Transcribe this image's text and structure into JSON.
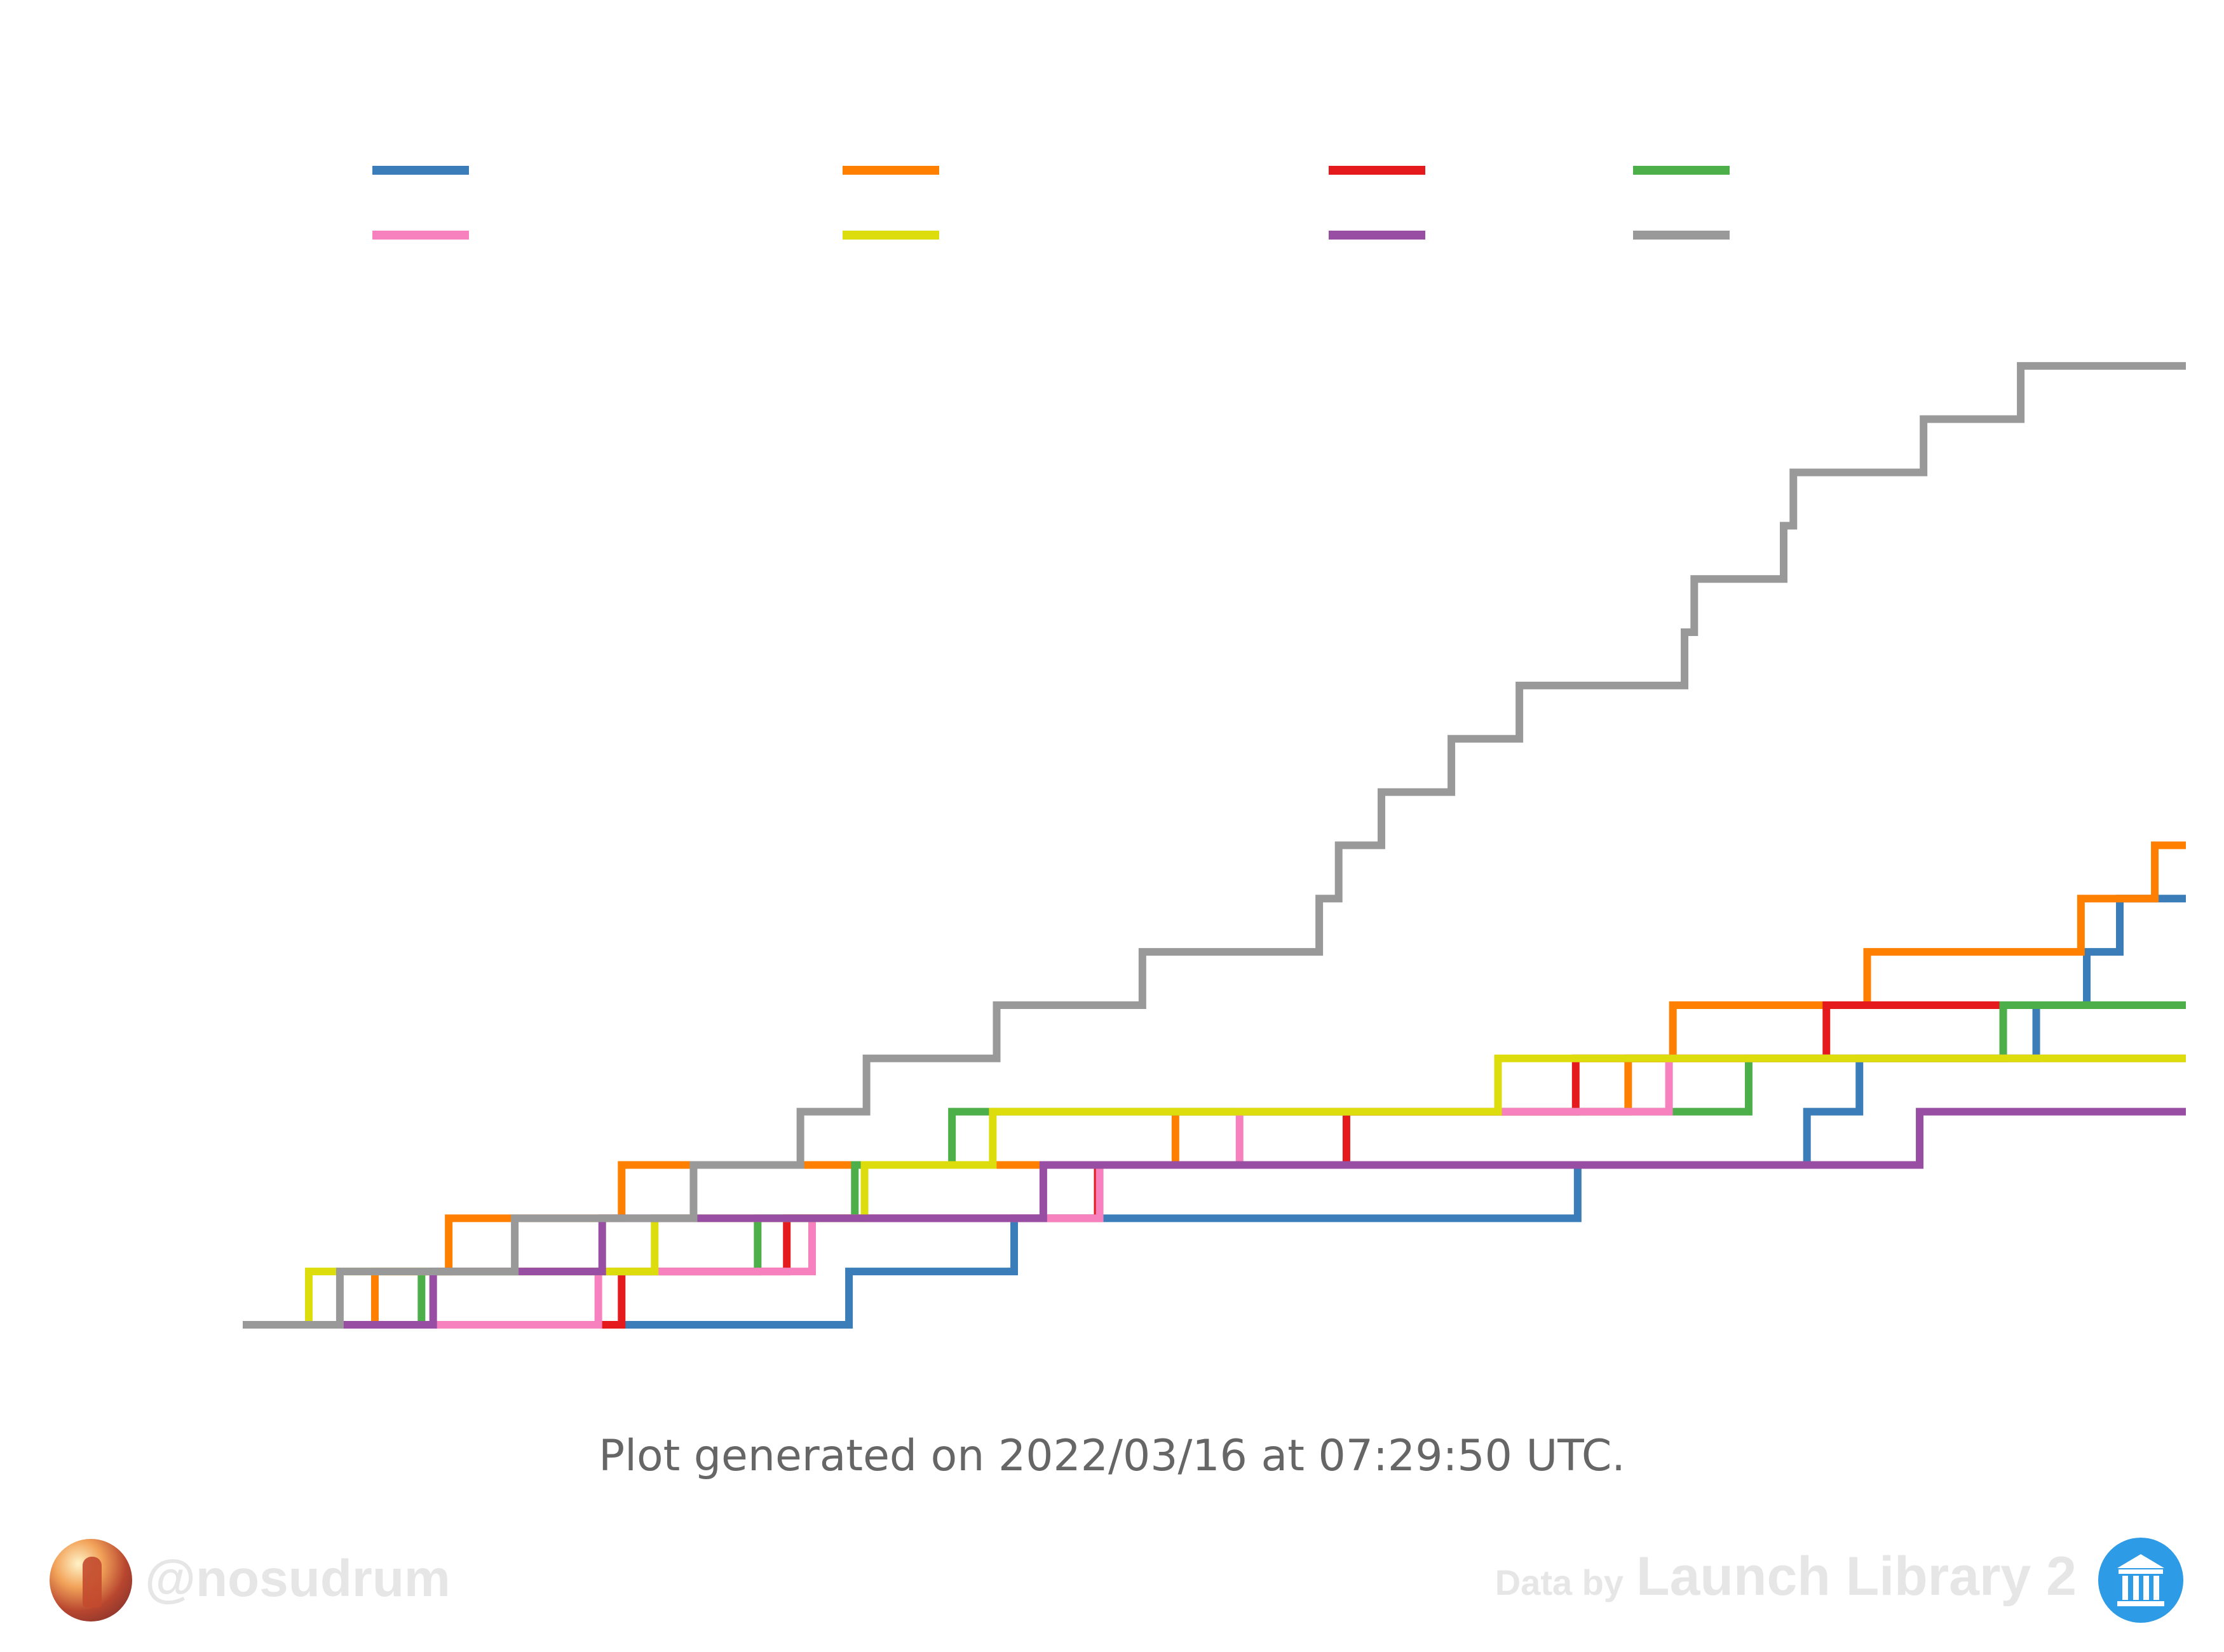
{
  "chart_data": {
    "type": "line",
    "step": true,
    "title": "",
    "xlabel": "",
    "ylabel": "",
    "xlim": [
      0,
      100
    ],
    "ylim": [
      0,
      19
    ],
    "grid": false,
    "legend": {
      "placement": "top",
      "columns": 4,
      "entries": []
    },
    "series": [
      {
        "name": "",
        "color": "#3a7db8",
        "x": [
          0,
          31.2,
          39.7,
          68.7,
          80.5,
          83.2,
          92.3,
          94.9,
          96.6,
          100
        ],
        "y": [
          0,
          1,
          2,
          3,
          4,
          5,
          6,
          7,
          8,
          8
        ]
      },
      {
        "name": "",
        "color": "#ff7f00",
        "x": [
          0,
          6.8,
          10.6,
          19.5,
          48.0,
          71.3,
          73.6,
          83.6,
          94.6,
          98.4,
          100
        ],
        "y": [
          0,
          1,
          2,
          3,
          4,
          5,
          6,
          7,
          8,
          9,
          9
        ]
      },
      {
        "name": "",
        "color": "#e41a1c",
        "x": [
          0,
          19.5,
          28.0,
          44.0,
          56.8,
          68.6,
          81.5,
          100
        ],
        "y": [
          0,
          1,
          2,
          3,
          4,
          5,
          6,
          6
        ]
      },
      {
        "name": "",
        "color": "#4daf4a",
        "x": [
          0,
          9.2,
          26.5,
          31.5,
          36.5,
          77.5,
          90.6,
          100
        ],
        "y": [
          0,
          1,
          2,
          3,
          4,
          5,
          6,
          6
        ]
      },
      {
        "name": "",
        "color": "#f781bf",
        "x": [
          0,
          18.3,
          29.3,
          44.1,
          51.3,
          73.4,
          100
        ],
        "y": [
          0,
          1,
          2,
          3,
          4,
          5,
          5
        ]
      },
      {
        "name": "",
        "color": "#dddd0e",
        "x": [
          0,
          3.4,
          21.2,
          32.0,
          38.6,
          64.6,
          100
        ],
        "y": [
          0,
          1,
          2,
          3,
          4,
          5,
          5
        ]
      },
      {
        "name": "",
        "color": "#984ea3",
        "x": [
          0,
          9.8,
          18.5,
          41.2,
          86.3,
          100
        ],
        "y": [
          0,
          1,
          2,
          3,
          4,
          4
        ]
      },
      {
        "name": "",
        "color": "#999999",
        "x": [
          0,
          5.0,
          14.0,
          23.2,
          28.7,
          32.1,
          38.8,
          46.3,
          55.4,
          56.4,
          58.6,
          62.2,
          65.7,
          74.2,
          74.7,
          79.3,
          79.8,
          86.5,
          91.5,
          100
        ],
        "y": [
          0,
          1,
          2,
          3,
          4,
          5,
          6,
          7,
          8,
          9,
          10,
          11,
          12,
          13,
          14,
          15,
          16,
          17,
          18,
          18
        ]
      }
    ]
  },
  "footer": {
    "generated_note": "Plot generated on 2022/03/16 at 07:29:50 UTC.",
    "author_handle": "@nosudrum",
    "credit_prefix": "Data by",
    "credit_source": "Launch Library 2"
  },
  "icons": {
    "author": "author-avatar-icon",
    "source": "launch-library-logo-icon"
  }
}
